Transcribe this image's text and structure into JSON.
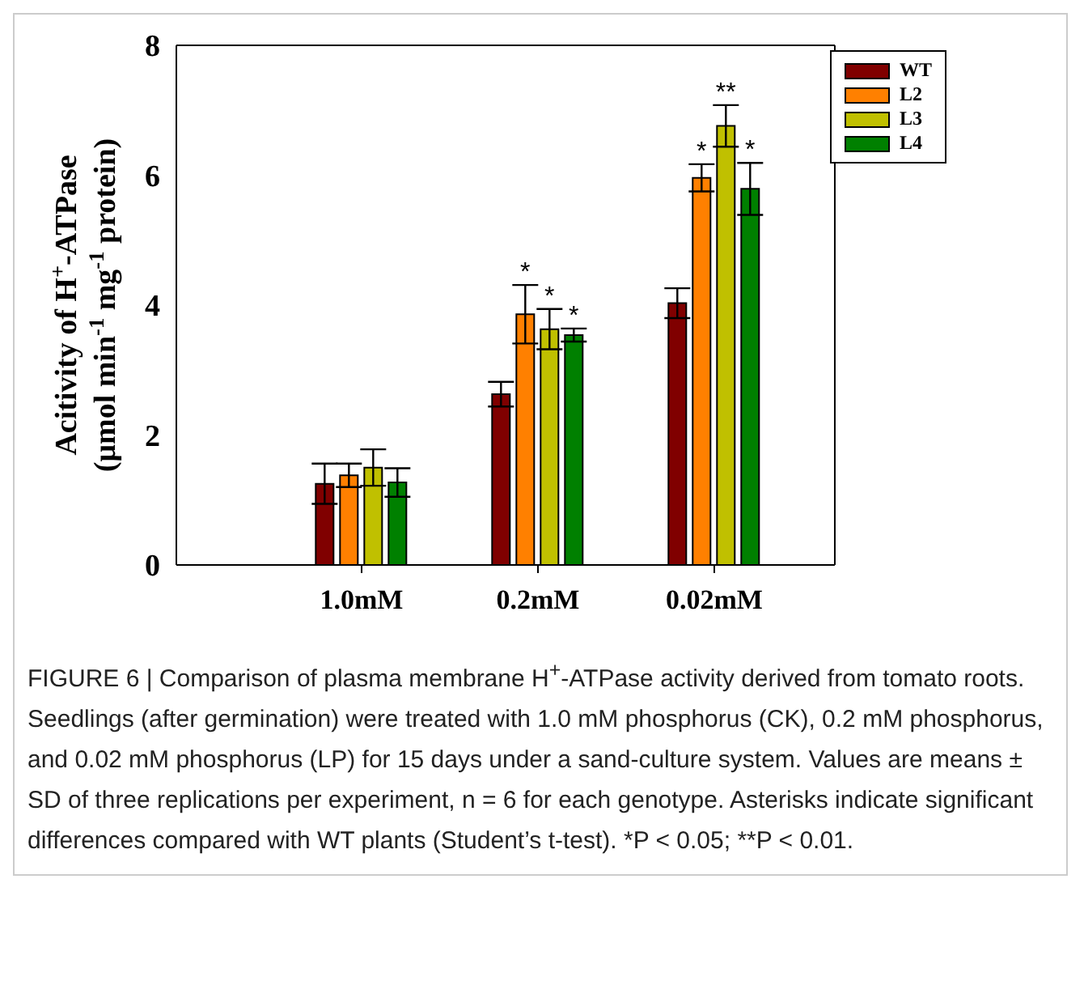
{
  "chart_data": {
    "type": "bar",
    "categories": [
      "1.0mM",
      "0.2mM",
      "0.02mM"
    ],
    "ylabel": "Acitivity of H$^{+}$-ATPase (μmol min$^{-1}$ mg$^{-1}$ protein)",
    "series": [
      {
        "name": "WT",
        "color": "#800000",
        "values": [
          1.25,
          2.63,
          4.03
        ],
        "errors": [
          0.31,
          0.19,
          0.23
        ],
        "value_labels": [
          null,
          null,
          null
        ]
      },
      {
        "name": "L2",
        "color": "#ff8000",
        "values": [
          1.38,
          3.86,
          5.96
        ],
        "errors": [
          0.18,
          0.45,
          0.21
        ],
        "value_labels": [
          null,
          "*",
          "*"
        ]
      },
      {
        "name": "L3",
        "color": "#c0c000",
        "values": [
          1.5,
          3.63,
          6.76
        ],
        "errors": [
          0.28,
          0.31,
          0.32
        ],
        "value_labels": [
          null,
          "*",
          "**"
        ]
      },
      {
        "name": "L4",
        "color": "#008000",
        "values": [
          1.27,
          3.54,
          5.79
        ],
        "errors": [
          0.22,
          0.1,
          0.4
        ],
        "value_labels": [
          null,
          "*",
          "*"
        ]
      }
    ],
    "ylim": [
      0,
      8
    ],
    "yticks": [
      0,
      2,
      4,
      6,
      8
    ],
    "grid": false,
    "legend": "top right",
    "annotations": [
      "FIGURE 6 | Comparison of plasma membrane H$^{+}$-ATPase activity derived from tomato roots. Seedlings (after germination) were treated with 1.0 mM phosphorus (CK), 0.2 mM phosphorus, and 0.02 mM phosphorus (LP) for 15 days under a sand-culture system. Values are means ± SD of three replications per experiment, n = 6 for each genotype. Asterisks indicate significant differences compared with WT plants (Student’s t-test). *P < 0.05; **P < 0.01."
    ]
  }
}
